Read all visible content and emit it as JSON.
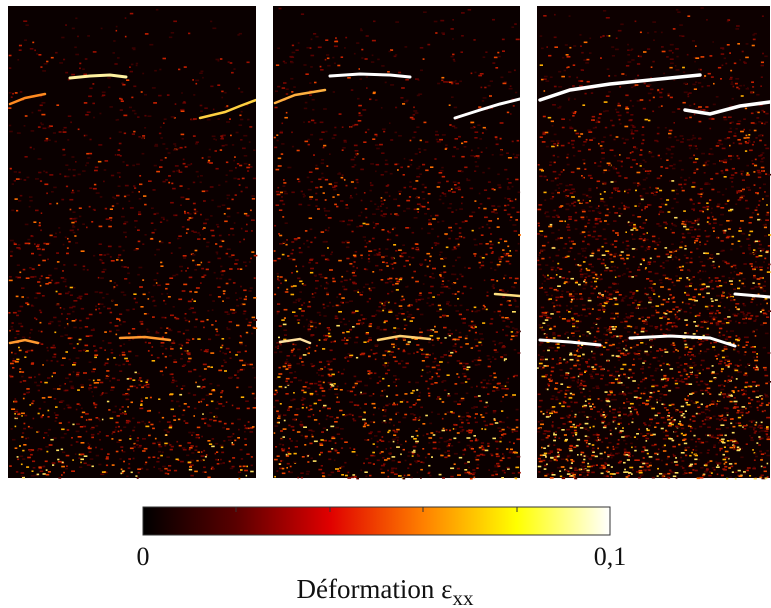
{
  "colorbar": {
    "min_label": "0",
    "max_label": "0,1",
    "title": "Déformation ε",
    "title_subscript": "xx"
  }
}
